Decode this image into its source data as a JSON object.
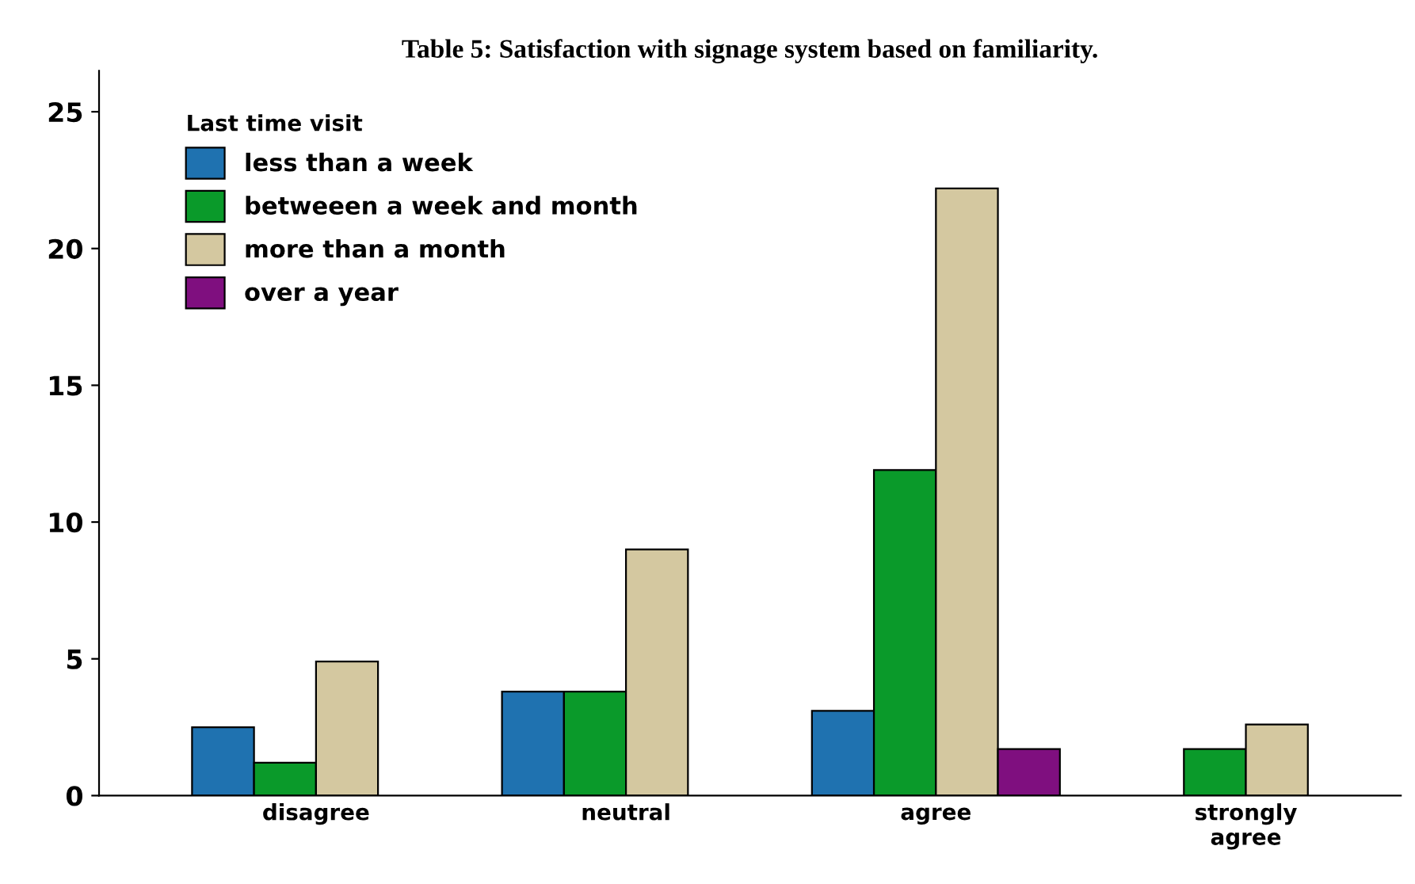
{
  "chart_data": {
    "type": "bar",
    "title": "Table 5: Satisfaction with signage system based on familiarity.",
    "categories": [
      "disagree",
      "neutral",
      "agree",
      "strongly\nagree"
    ],
    "legend_title": "Last time visit",
    "series": [
      {
        "name": "less than a week",
        "color": "#1f72b0",
        "values": [
          2.5,
          3.8,
          3.1,
          null
        ]
      },
      {
        "name": "betweeen a week and month",
        "color": "#0a9a2a",
        "values": [
          1.2,
          3.8,
          11.9,
          1.7
        ]
      },
      {
        "name": "more than a month",
        "color": "#d4c8a0",
        "values": [
          4.9,
          9,
          22.2,
          2.6
        ]
      },
      {
        "name": "over a year",
        "color": "#7f0f7f",
        "values": [
          null,
          null,
          1.7,
          null
        ]
      }
    ],
    "ylim": [
      0,
      26.5
    ],
    "yticks": [
      0,
      5,
      10,
      15,
      20,
      25
    ],
    "grid": false,
    "legend": "top left"
  }
}
